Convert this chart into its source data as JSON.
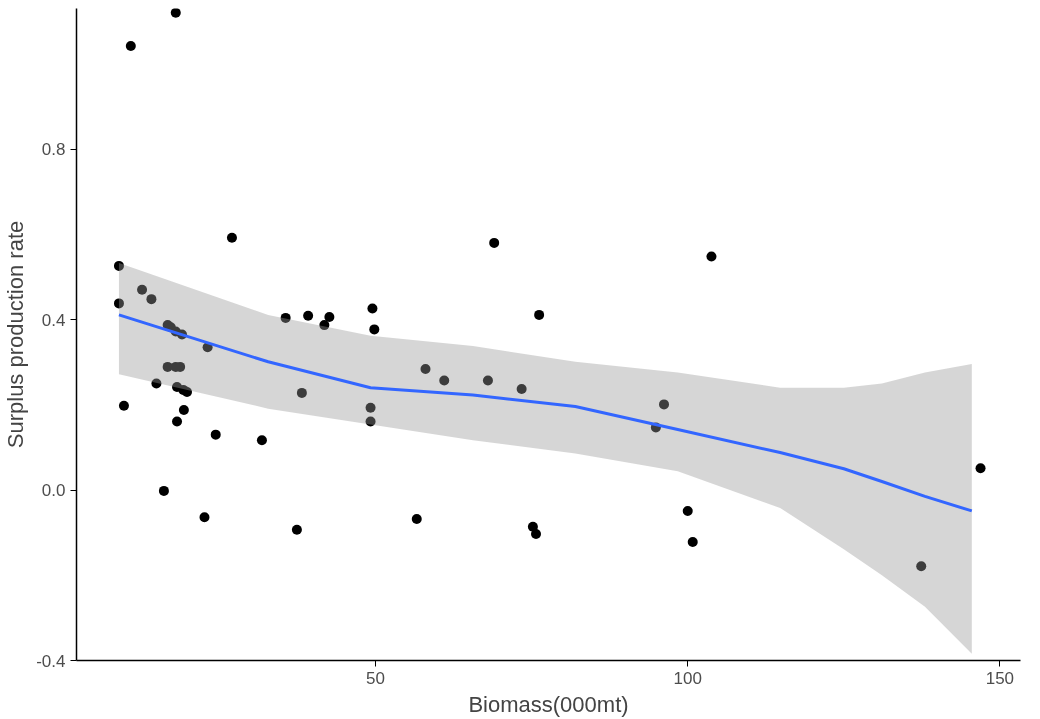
{
  "chart_data": {
    "type": "scatter",
    "xlabel": "Biomass(000mt)",
    "ylabel": "Surplus production rate",
    "xlim": [
      2.1,
      153.3
    ],
    "ylim": [
      -0.4,
      1.13
    ],
    "xticks": [
      50,
      100,
      150
    ],
    "yticks": [
      {
        "value": -0.4,
        "label": "-0.4"
      },
      {
        "value": 0.0,
        "label": "0.0"
      },
      {
        "value": 0.4,
        "label": "0.4"
      },
      {
        "value": 0.8,
        "label": "0.8"
      }
    ],
    "grid": false,
    "series": [
      {
        "marker": "circle",
        "color": "#000000",
        "x": [
          8.9,
          8.9,
          9.7,
          10.8,
          12.6,
          14.1,
          14.9,
          16.1,
          16.7,
          17.2,
          18.0,
          19.0,
          16.7,
          18.0,
          18.7,
          18.2,
          19.2,
          18.2,
          19.3,
          19.8,
          18.0,
          22.6,
          23.1,
          24.4,
          27.0,
          31.8,
          35.6,
          37.4,
          38.2,
          39.2,
          41.8,
          42.6,
          49.5,
          49.8,
          49.2,
          49.2,
          56.6,
          58.0,
          61.0,
          68.0,
          69.0,
          73.4,
          75.2,
          75.7,
          76.2,
          94.9,
          96.2,
          100.0,
          100.8,
          103.8,
          137.4,
          146.9
        ],
        "values": [
          0.526,
          0.438,
          0.198,
          1.042,
          0.47,
          0.448,
          0.25,
          -0.002,
          0.387,
          0.382,
          0.372,
          0.365,
          0.289,
          0.289,
          0.289,
          0.242,
          0.235,
          0.161,
          0.188,
          0.23,
          1.12,
          -0.064,
          0.335,
          0.13,
          0.592,
          0.117,
          0.404,
          -0.093,
          0.228,
          0.409,
          0.387,
          0.406,
          0.426,
          0.377,
          0.193,
          0.161,
          -0.068,
          0.284,
          0.257,
          0.257,
          0.58,
          0.237,
          -0.086,
          -0.103,
          0.411,
          0.147,
          0.201,
          -0.049,
          -0.122,
          0.548,
          -0.179,
          0.051
        ]
      },
      {
        "type": "line",
        "marker": "none",
        "color": "#3366ff",
        "x": [
          8.9,
          32.8,
          49.2,
          65.6,
          82.0,
          98.4,
          114.8,
          125.0,
          131.1,
          138.0,
          145.5
        ],
        "values": [
          0.411,
          0.301,
          0.24,
          0.223,
          0.196,
          0.142,
          0.088,
          0.05,
          0.02,
          -0.015,
          -0.049
        ],
        "lower": [
          0.272,
          0.191,
          0.154,
          0.117,
          0.086,
          0.044,
          -0.042,
          -0.139,
          -0.2,
          -0.274,
          -0.384
        ],
        "upper": [
          0.533,
          0.411,
          0.362,
          0.338,
          0.301,
          0.276,
          0.24,
          0.24,
          0.25,
          0.276,
          0.296
        ]
      }
    ]
  }
}
